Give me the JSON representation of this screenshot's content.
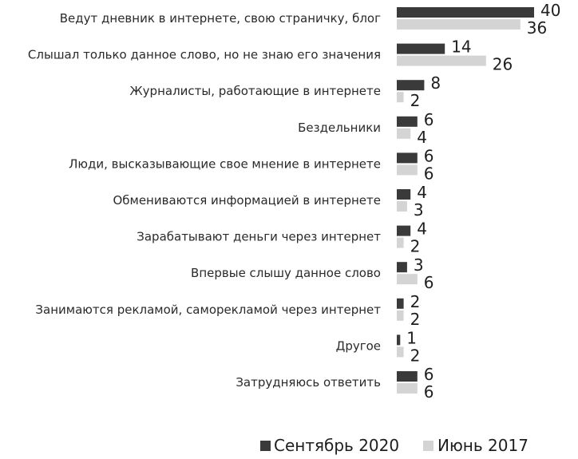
{
  "chart_data": {
    "type": "bar",
    "orientation": "horizontal",
    "categories": [
      "Ведут дневник в интернете, свою страничку, блог",
      "Слышал только данное слово, но не знаю его значения",
      "Журналисты, работающие в интернете",
      "Бездельники",
      "Люди, высказывающие свое мнение в интернете",
      "Обмениваются информацией в интернете",
      "Зарабатывают деньги через интернет",
      "Впервые слышу данное слово",
      "Занимаются рекламой, саморекламой через интернет",
      "Другое",
      "Затрудняюсь ответить"
    ],
    "series": [
      {
        "name": "Сентябрь 2020",
        "color": "#3a3a3a",
        "values": [
          40,
          14,
          8,
          6,
          6,
          4,
          4,
          3,
          2,
          1,
          6
        ]
      },
      {
        "name": "Июнь 2017",
        "color": "#d4d4d4",
        "values": [
          36,
          26,
          2,
          4,
          6,
          3,
          2,
          6,
          2,
          2,
          6
        ]
      }
    ],
    "xlim": [
      0,
      40
    ],
    "grid": false,
    "legend_position": "bottom-right"
  }
}
